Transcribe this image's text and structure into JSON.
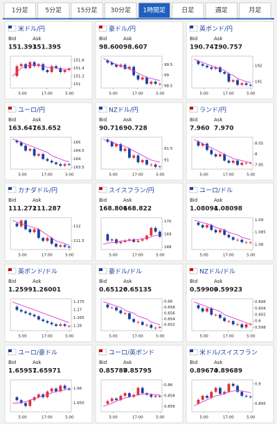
{
  "tabs": [
    "1分足",
    "5分足",
    "15分足",
    "30分足",
    "1時間足",
    "日足",
    "週足",
    "月足"
  ],
  "active_tab": 4,
  "panels": [
    {
      "name": "米ドル/円",
      "bid_label": "Bid",
      "ask_label": "Ask",
      "bid": "151.393",
      "ask": "151.395",
      "chart": {
        "ylim": [
          150.9,
          151.7
        ],
        "yticks": [
          151,
          151.2,
          151.4,
          151.6
        ],
        "xticks": [
          "5:00",
          "17:00",
          "5:00"
        ],
        "closes": [
          151.2,
          151.45,
          151.5,
          151.4,
          151.55,
          151.45,
          151.5,
          151.35,
          151.3,
          151.45,
          151.4,
          151.3,
          151.35,
          151.39
        ],
        "ma": [
          151.2,
          151.3,
          151.4,
          151.45,
          151.47,
          151.48,
          151.47,
          151.45,
          151.42,
          151.41,
          151.4,
          151.38,
          151.37,
          151.37
        ]
      }
    },
    {
      "name": "豪ドル/円",
      "bid_label": "Bid",
      "ask_label": "Ask",
      "bid": "98.600",
      "ask": "98.607",
      "chart": {
        "ylim": [
          98.4,
          99.9
        ],
        "yticks": [
          98.5,
          99,
          99.5
        ],
        "xticks": [
          "5:00",
          "17:00",
          "5:00"
        ],
        "closes": [
          99.7,
          99.6,
          99.5,
          99.4,
          99.5,
          99.3,
          99.4,
          99.0,
          98.8,
          98.9,
          98.6,
          98.7,
          98.6,
          98.6
        ],
        "ma": [
          99.8,
          99.7,
          99.6,
          99.5,
          99.45,
          99.4,
          99.3,
          99.2,
          99.1,
          99.0,
          98.9,
          98.85,
          98.8,
          98.75
        ]
      }
    },
    {
      "name": "英ポンド/円",
      "bid_label": "Bid",
      "ask_label": "Ask",
      "bid": "190.747",
      "ask": "190.757",
      "chart": {
        "ylim": [
          190.6,
          192.6
        ],
        "yticks": [
          191,
          192
        ],
        "xticks": [
          "5:00",
          "17:00",
          "5:00"
        ],
        "closes": [
          192.3,
          192.1,
          192.0,
          191.9,
          191.8,
          191.9,
          191.6,
          191.5,
          191.0,
          191.1,
          190.8,
          190.9,
          190.8,
          190.75
        ],
        "ma": [
          192.4,
          192.3,
          192.2,
          192.1,
          192.0,
          191.9,
          191.8,
          191.7,
          191.5,
          191.4,
          191.2,
          191.1,
          191.0,
          190.95
        ]
      }
    },
    {
      "name": "ユーロ/円",
      "bid_label": "Bid",
      "ask_label": "Ask",
      "bid": "163.647",
      "ask": "163.652",
      "chart": {
        "ylim": [
          163.4,
          165.3
        ],
        "yticks": [
          163.5,
          164,
          164.5,
          165
        ],
        "xticks": [
          "5:00",
          "17:00",
          "5:00"
        ],
        "closes": [
          165.1,
          165.0,
          164.8,
          164.5,
          164.6,
          164.2,
          164.3,
          164.0,
          163.9,
          163.8,
          163.7,
          163.6,
          163.7,
          163.65
        ],
        "ma": [
          165.2,
          165.1,
          165.0,
          164.9,
          164.8,
          164.7,
          164.6,
          164.5,
          164.4,
          164.2,
          164.1,
          164.0,
          163.9,
          163.85
        ]
      }
    },
    {
      "name": "NZドル/円",
      "bid_label": "Bid",
      "ask_label": "Ask",
      "bid": "90.716",
      "ask": "90.728",
      "chart": {
        "ylim": [
          90.6,
          92.0
        ],
        "yticks": [
          91,
          91.5
        ],
        "xticks": [
          "5:00",
          "17:00",
          "5:00"
        ],
        "closes": [
          91.9,
          91.8,
          91.6,
          91.7,
          91.4,
          91.5,
          91.1,
          91.2,
          90.9,
          91.0,
          90.8,
          90.8,
          90.7,
          90.72
        ],
        "ma": [
          91.9,
          91.85,
          91.8,
          91.7,
          91.65,
          91.6,
          91.5,
          91.4,
          91.3,
          91.2,
          91.1,
          91.0,
          90.95,
          90.9
        ]
      }
    },
    {
      "name": "ランド/円",
      "bid_label": "Bid",
      "ask_label": "Ask",
      "bid": "7.960",
      "ask": "7.970",
      "chart": {
        "ylim": [
          7.93,
          8.08
        ],
        "yticks": [
          7.95,
          8,
          8.05
        ],
        "xticks": [
          "5:00",
          "17:00",
          "5:00"
        ],
        "closes": [
          8.06,
          8.04,
          8.05,
          8.02,
          8.0,
          7.99,
          8.0,
          7.97,
          7.96,
          7.97,
          7.95,
          7.96,
          7.96,
          7.96
        ],
        "ma": [
          8.07,
          8.06,
          8.05,
          8.04,
          8.03,
          8.02,
          8.01,
          8.0,
          7.99,
          7.98,
          7.975,
          7.97,
          7.965,
          7.96
        ]
      }
    },
    {
      "name": "カナダドル/円",
      "bid_label": "Bid",
      "ask_label": "Ask",
      "bid": "111.272",
      "ask": "111.287",
      "chart": {
        "ylim": [
          111.2,
          112.3
        ],
        "yticks": [
          111.5,
          112
        ],
        "xticks": [
          "5:00",
          "17:00",
          "5:00"
        ],
        "closes": [
          112.1,
          112.0,
          112.2,
          111.9,
          111.8,
          111.9,
          111.6,
          111.5,
          111.6,
          111.4,
          111.3,
          111.35,
          111.3,
          111.27
        ],
        "ma": [
          112.2,
          112.15,
          112.1,
          112.05,
          112.0,
          111.95,
          111.9,
          111.8,
          111.7,
          111.6,
          111.5,
          111.45,
          111.4,
          111.35
        ]
      }
    },
    {
      "name": "スイスフラン/円",
      "bid_label": "Bid",
      "ask_label": "Ask",
      "bid": "168.806",
      "ask": "168.822",
      "chart": {
        "ylim": [
          167.8,
          170.3
        ],
        "yticks": [
          168,
          169,
          170
        ],
        "xticks": [
          "5:00",
          "17:00",
          "5:00"
        ],
        "closes": [
          169.0,
          168.5,
          168.6,
          168.3,
          168.4,
          168.5,
          168.6,
          168.4,
          168.5,
          168.6,
          168.9,
          169.5,
          169.2,
          168.8
        ],
        "ma": [
          168.2,
          168.3,
          168.35,
          168.4,
          168.45,
          168.5,
          168.5,
          168.55,
          168.6,
          168.65,
          168.7,
          168.8,
          168.9,
          168.95
        ]
      }
    },
    {
      "name": "ユーロ/ドル",
      "bid_label": "Bid",
      "ask_label": "Ask",
      "bid": "1.08094",
      "ask": "1.08098",
      "chart": {
        "ylim": [
          1.078,
          1.091
        ],
        "yticks": [
          1.08,
          1.085,
          1.09
        ],
        "xticks": [
          "5:00",
          "17:00",
          "5:00"
        ],
        "closes": [
          1.089,
          1.088,
          1.087,
          1.088,
          1.086,
          1.085,
          1.086,
          1.084,
          1.083,
          1.082,
          1.082,
          1.081,
          1.081,
          1.081
        ],
        "ma": [
          1.09,
          1.0895,
          1.089,
          1.0885,
          1.088,
          1.087,
          1.0865,
          1.086,
          1.085,
          1.0845,
          1.084,
          1.083,
          1.0825,
          1.082
        ]
      }
    },
    {
      "name": "英ポンド/ドル",
      "bid_label": "Bid",
      "ask_label": "Ask",
      "bid": "1.25991",
      "ask": "1.26001",
      "chart": {
        "ylim": [
          1.257,
          1.277
        ],
        "yticks": [
          1.26,
          1.265,
          1.27,
          1.275
        ],
        "xticks": [
          "5:00",
          "17:00",
          "5:00"
        ],
        "closes": [
          1.272,
          1.27,
          1.269,
          1.268,
          1.267,
          1.266,
          1.264,
          1.263,
          1.262,
          1.261,
          1.26,
          1.261,
          1.26,
          1.26
        ],
        "ma": [
          1.275,
          1.274,
          1.273,
          1.272,
          1.271,
          1.27,
          1.269,
          1.268,
          1.267,
          1.266,
          1.265,
          1.264,
          1.263,
          1.262
        ]
      }
    },
    {
      "name": "豪ドル/ドル",
      "bid_label": "Bid",
      "ask_label": "Ask",
      "bid": "0.65126",
      "ask": "0.65135",
      "chart": {
        "ylim": [
          0.65,
          0.661
        ],
        "yticks": [
          0.652,
          0.654,
          0.656,
          0.658,
          0.66
        ],
        "xticks": [
          "5:00",
          "17:00",
          "5:00"
        ],
        "closes": [
          0.659,
          0.658,
          0.658,
          0.657,
          0.656,
          0.656,
          0.654,
          0.653,
          0.653,
          0.652,
          0.652,
          0.651,
          0.651,
          0.6513
        ],
        "ma": [
          0.66,
          0.6595,
          0.659,
          0.6585,
          0.658,
          0.657,
          0.6565,
          0.656,
          0.655,
          0.6545,
          0.654,
          0.653,
          0.6525,
          0.652
        ]
      }
    },
    {
      "name": "NZドル/ドル",
      "bid_label": "Bid",
      "ask_label": "Ask",
      "bid": "0.59909",
      "ask": "0.59923",
      "chart": {
        "ylim": [
          0.597,
          0.607
        ],
        "yticks": [
          0.598,
          0.6,
          0.602,
          0.604,
          0.606
        ],
        "xticks": [
          "5:00",
          "17:00",
          "5:00"
        ],
        "closes": [
          0.605,
          0.604,
          0.603,
          0.604,
          0.602,
          0.602,
          0.601,
          0.6,
          0.6,
          0.599,
          0.599,
          0.598,
          0.599,
          0.5991
        ],
        "ma": [
          0.606,
          0.6055,
          0.605,
          0.6045,
          0.604,
          0.6035,
          0.603,
          0.602,
          0.6015,
          0.601,
          0.6005,
          0.6,
          0.5995,
          0.599
        ]
      }
    },
    {
      "name": "ユーロ/豪ドル",
      "bid_label": "Bid",
      "ask_label": "Ask",
      "bid": "1.65957",
      "ask": "1.65971",
      "chart": {
        "ylim": [
          1.652,
          1.663
        ],
        "yticks": [
          1.655,
          1.66
        ],
        "xticks": [
          "5:00",
          "17:00",
          "5:00"
        ],
        "closes": [
          1.657,
          1.656,
          1.655,
          1.654,
          1.656,
          1.657,
          1.658,
          1.657,
          1.659,
          1.66,
          1.659,
          1.661,
          1.66,
          1.6596
        ],
        "ma": [
          1.655,
          1.655,
          1.6552,
          1.6555,
          1.656,
          1.6565,
          1.657,
          1.6575,
          1.658,
          1.6585,
          1.659,
          1.6592,
          1.6595,
          1.66
        ]
      }
    },
    {
      "name": "ユーロ/英ポンド",
      "bid_label": "Bid",
      "ask_label": "Ask",
      "bid": "0.85787",
      "ask": "0.85795",
      "chart": {
        "ylim": [
          0.855,
          0.861
        ],
        "yticks": [
          0.856,
          0.858,
          0.86
        ],
        "xticks": [
          "5:00",
          "17:00",
          "5:00"
        ],
        "closes": [
          0.8565,
          0.857,
          0.8575,
          0.8572,
          0.858,
          0.8585,
          0.8578,
          0.8582,
          0.8595,
          0.8585,
          0.8582,
          0.8578,
          0.858,
          0.8579
        ],
        "ma": [
          0.856,
          0.8563,
          0.8566,
          0.857,
          0.8573,
          0.8576,
          0.8578,
          0.858,
          0.8582,
          0.8583,
          0.8584,
          0.8583,
          0.8582,
          0.8581
        ]
      }
    },
    {
      "name": "米ドル/スイスフラン",
      "bid_label": "Bid",
      "ask_label": "Ask",
      "bid": "0.89674",
      "ask": "0.89689",
      "chart": {
        "ylim": [
          0.893,
          0.901
        ],
        "yticks": [
          0.895,
          0.9
        ],
        "xticks": [
          "5:00",
          "17:00",
          "5:00"
        ],
        "closes": [
          0.895,
          0.896,
          0.897,
          0.8965,
          0.898,
          0.899,
          0.8975,
          0.898,
          0.9,
          0.8995,
          0.898,
          0.897,
          0.8968,
          0.8967
        ],
        "ma": [
          0.8945,
          0.895,
          0.8955,
          0.896,
          0.8965,
          0.897,
          0.8972,
          0.8975,
          0.898,
          0.8982,
          0.8983,
          0.8982,
          0.898,
          0.8978
        ]
      }
    }
  ]
}
